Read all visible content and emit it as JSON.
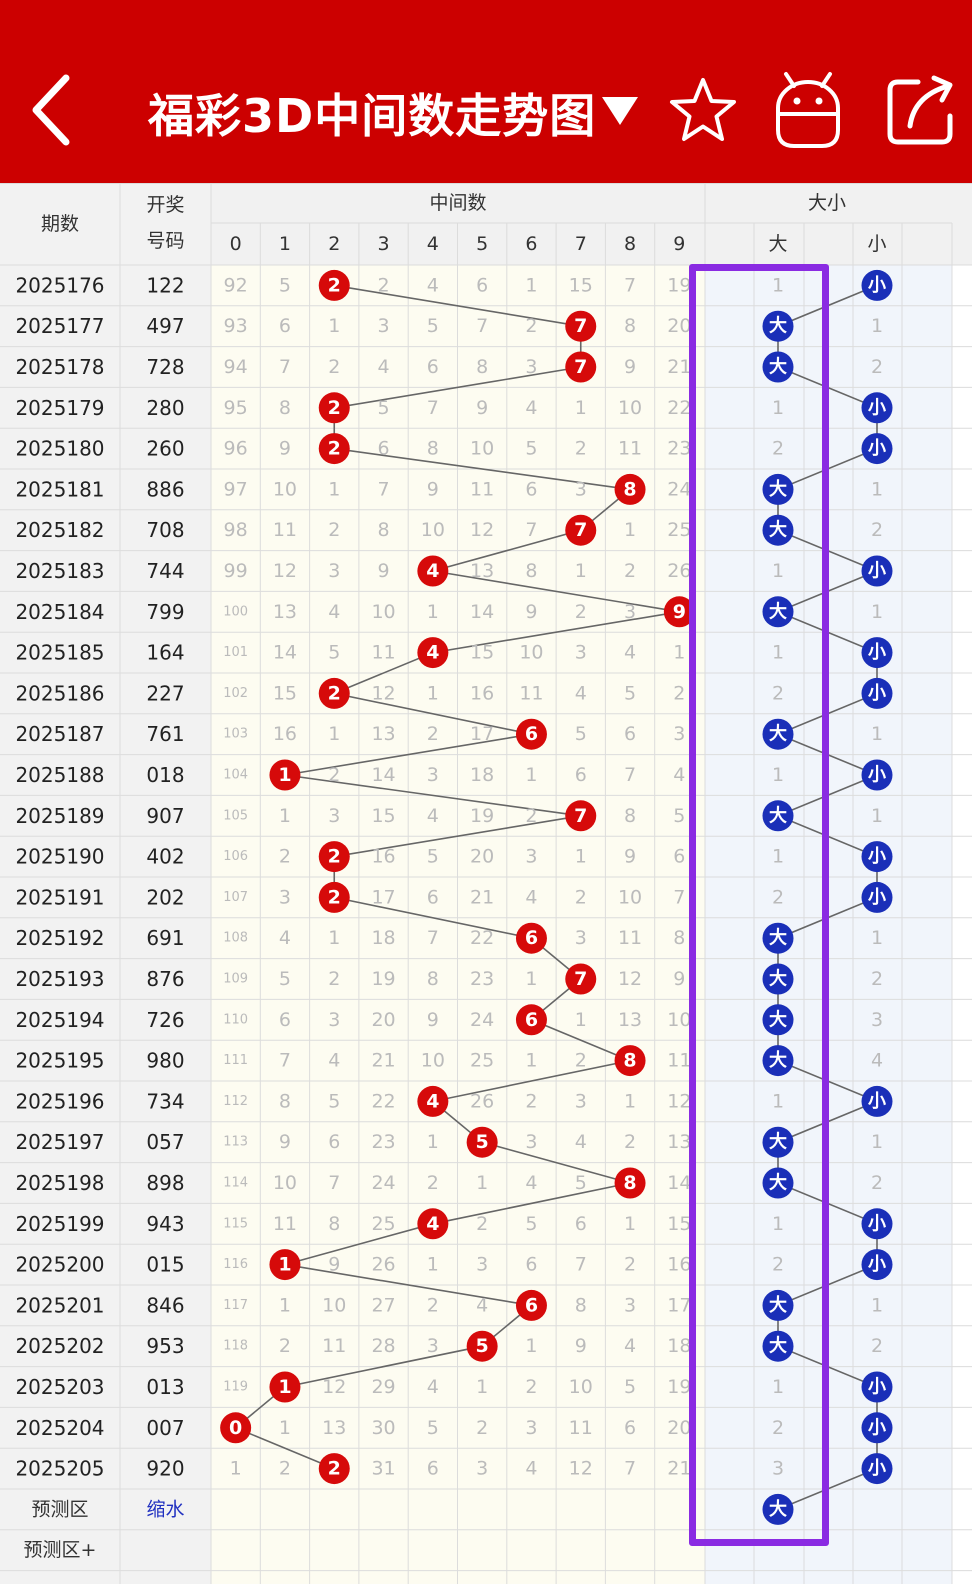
{
  "header": {
    "title": "福彩3D中间数走势图",
    "back_icon": "back-arrow-icon",
    "dropdown_icon": "triangle-down-icon",
    "actions": [
      "star-icon",
      "robot-icon",
      "share-icon"
    ]
  },
  "colors": {
    "header_bg": "#cc0000",
    "ball_red": "#d60a0a",
    "ball_blue": "#1a2fb8",
    "highlight": "#8a2be2",
    "grid_bg": "#fdfcf1"
  },
  "columns": {
    "period": "期数",
    "draw_line1": "开奖",
    "draw_line2": "号码",
    "middle_group": "中间数",
    "digits": [
      "0",
      "1",
      "2",
      "3",
      "4",
      "5",
      "6",
      "7",
      "8",
      "9"
    ],
    "size_group": "大小",
    "big": "大",
    "small": "小"
  },
  "rows": [
    {
      "period": "2025176",
      "draw": "122",
      "mid": [
        "92",
        "5",
        "2",
        "2",
        "4",
        "6",
        "1",
        "15",
        "7",
        "19"
      ],
      "midHit": 2,
      "size": [
        "1",
        "小"
      ],
      "sizeHit": 1
    },
    {
      "period": "2025177",
      "draw": "497",
      "mid": [
        "93",
        "6",
        "1",
        "3",
        "5",
        "7",
        "2",
        "7",
        "8",
        "20"
      ],
      "midHit": 7,
      "size": [
        "大",
        "1"
      ],
      "sizeHit": 0
    },
    {
      "period": "2025178",
      "draw": "728",
      "mid": [
        "94",
        "7",
        "2",
        "4",
        "6",
        "8",
        "3",
        "7",
        "9",
        "21"
      ],
      "midHit": 7,
      "size": [
        "大",
        "2"
      ],
      "sizeHit": 0
    },
    {
      "period": "2025179",
      "draw": "280",
      "mid": [
        "95",
        "8",
        "2",
        "5",
        "7",
        "9",
        "4",
        "1",
        "10",
        "22"
      ],
      "midHit": 2,
      "size": [
        "1",
        "小"
      ],
      "sizeHit": 1
    },
    {
      "period": "2025180",
      "draw": "260",
      "mid": [
        "96",
        "9",
        "2",
        "6",
        "8",
        "10",
        "5",
        "2",
        "11",
        "23"
      ],
      "midHit": 2,
      "size": [
        "2",
        "小"
      ],
      "sizeHit": 1
    },
    {
      "period": "2025181",
      "draw": "886",
      "mid": [
        "97",
        "10",
        "1",
        "7",
        "9",
        "11",
        "6",
        "3",
        "8",
        "24"
      ],
      "midHit": 8,
      "size": [
        "大",
        "1"
      ],
      "sizeHit": 0
    },
    {
      "period": "2025182",
      "draw": "708",
      "mid": [
        "98",
        "11",
        "2",
        "8",
        "10",
        "12",
        "7",
        "7",
        "1",
        "25"
      ],
      "midHit": 7,
      "size": [
        "大",
        "2"
      ],
      "sizeHit": 0
    },
    {
      "period": "2025183",
      "draw": "744",
      "mid": [
        "99",
        "12",
        "3",
        "9",
        "4",
        "13",
        "8",
        "1",
        "2",
        "26"
      ],
      "midHit": 4,
      "size": [
        "1",
        "小"
      ],
      "sizeHit": 1
    },
    {
      "period": "2025184",
      "draw": "799",
      "mid": [
        "100",
        "13",
        "4",
        "10",
        "1",
        "14",
        "9",
        "2",
        "3",
        "9"
      ],
      "midHit": 9,
      "size": [
        "大",
        "1"
      ],
      "sizeHit": 0
    },
    {
      "period": "2025185",
      "draw": "164",
      "mid": [
        "101",
        "14",
        "5",
        "11",
        "4",
        "15",
        "10",
        "3",
        "4",
        "1"
      ],
      "midHit": 4,
      "size": [
        "1",
        "小"
      ],
      "sizeHit": 1
    },
    {
      "period": "2025186",
      "draw": "227",
      "mid": [
        "102",
        "15",
        "2",
        "12",
        "1",
        "16",
        "11",
        "4",
        "5",
        "2"
      ],
      "midHit": 2,
      "size": [
        "2",
        "小"
      ],
      "sizeHit": 1
    },
    {
      "period": "2025187",
      "draw": "761",
      "mid": [
        "103",
        "16",
        "1",
        "13",
        "2",
        "17",
        "6",
        "5",
        "6",
        "3"
      ],
      "midHit": 6,
      "size": [
        "大",
        "1"
      ],
      "sizeHit": 0
    },
    {
      "period": "2025188",
      "draw": "018",
      "mid": [
        "104",
        "1",
        "2",
        "14",
        "3",
        "18",
        "1",
        "6",
        "7",
        "4"
      ],
      "midHit": 1,
      "size": [
        "1",
        "小"
      ],
      "sizeHit": 1
    },
    {
      "period": "2025189",
      "draw": "907",
      "mid": [
        "105",
        "1",
        "3",
        "15",
        "4",
        "19",
        "2",
        "7",
        "8",
        "5"
      ],
      "midHit": 7,
      "size": [
        "大",
        "1"
      ],
      "sizeHit": 0
    },
    {
      "period": "2025190",
      "draw": "402",
      "mid": [
        "106",
        "2",
        "2",
        "16",
        "5",
        "20",
        "3",
        "1",
        "9",
        "6"
      ],
      "midHit": 2,
      "size": [
        "1",
        "小"
      ],
      "sizeHit": 1
    },
    {
      "period": "2025191",
      "draw": "202",
      "mid": [
        "107",
        "3",
        "2",
        "17",
        "6",
        "21",
        "4",
        "2",
        "10",
        "7"
      ],
      "midHit": 2,
      "size": [
        "2",
        "小"
      ],
      "sizeHit": 1
    },
    {
      "period": "2025192",
      "draw": "691",
      "mid": [
        "108",
        "4",
        "1",
        "18",
        "7",
        "22",
        "6",
        "3",
        "11",
        "8"
      ],
      "midHit": 6,
      "size": [
        "大",
        "1"
      ],
      "sizeHit": 0
    },
    {
      "period": "2025193",
      "draw": "876",
      "mid": [
        "109",
        "5",
        "2",
        "19",
        "8",
        "23",
        "1",
        "7",
        "12",
        "9"
      ],
      "midHit": 7,
      "size": [
        "大",
        "2"
      ],
      "sizeHit": 0
    },
    {
      "period": "2025194",
      "draw": "726",
      "mid": [
        "110",
        "6",
        "3",
        "20",
        "9",
        "24",
        "6",
        "1",
        "13",
        "10"
      ],
      "midHit": 6,
      "size": [
        "大",
        "3"
      ],
      "sizeHit": 0
    },
    {
      "period": "2025195",
      "draw": "980",
      "mid": [
        "111",
        "7",
        "4",
        "21",
        "10",
        "25",
        "1",
        "2",
        "8",
        "11"
      ],
      "midHit": 8,
      "size": [
        "大",
        "4"
      ],
      "sizeHit": 0
    },
    {
      "period": "2025196",
      "draw": "734",
      "mid": [
        "112",
        "8",
        "5",
        "22",
        "4",
        "26",
        "2",
        "3",
        "1",
        "12"
      ],
      "midHit": 4,
      "size": [
        "1",
        "小"
      ],
      "sizeHit": 1
    },
    {
      "period": "2025197",
      "draw": "057",
      "mid": [
        "113",
        "9",
        "6",
        "23",
        "1",
        "5",
        "3",
        "4",
        "2",
        "13"
      ],
      "midHit": 5,
      "size": [
        "大",
        "1"
      ],
      "sizeHit": 0
    },
    {
      "period": "2025198",
      "draw": "898",
      "mid": [
        "114",
        "10",
        "7",
        "24",
        "2",
        "1",
        "4",
        "5",
        "8",
        "14"
      ],
      "midHit": 8,
      "size": [
        "大",
        "2"
      ],
      "sizeHit": 0
    },
    {
      "period": "2025199",
      "draw": "943",
      "mid": [
        "115",
        "11",
        "8",
        "25",
        "4",
        "2",
        "5",
        "6",
        "1",
        "15"
      ],
      "midHit": 4,
      "size": [
        "1",
        "小"
      ],
      "sizeHit": 1
    },
    {
      "period": "2025200",
      "draw": "015",
      "mid": [
        "116",
        "1",
        "9",
        "26",
        "1",
        "3",
        "6",
        "7",
        "2",
        "16"
      ],
      "midHit": 1,
      "size": [
        "2",
        "小"
      ],
      "sizeHit": 1
    },
    {
      "period": "2025201",
      "draw": "846",
      "mid": [
        "117",
        "1",
        "10",
        "27",
        "2",
        "4",
        "6",
        "8",
        "3",
        "17"
      ],
      "midHit": 6,
      "size": [
        "大",
        "1"
      ],
      "sizeHit": 0
    },
    {
      "period": "2025202",
      "draw": "953",
      "mid": [
        "118",
        "2",
        "11",
        "28",
        "3",
        "5",
        "1",
        "9",
        "4",
        "18"
      ],
      "midHit": 5,
      "size": [
        "大",
        "2"
      ],
      "sizeHit": 0
    },
    {
      "period": "2025203",
      "draw": "013",
      "mid": [
        "119",
        "1",
        "12",
        "29",
        "4",
        "1",
        "2",
        "10",
        "5",
        "19"
      ],
      "midHit": 1,
      "size": [
        "1",
        "小"
      ],
      "sizeHit": 1
    },
    {
      "period": "2025204",
      "draw": "007",
      "mid": [
        "0",
        "1",
        "13",
        "30",
        "5",
        "2",
        "3",
        "11",
        "6",
        "20"
      ],
      "midHit": 0,
      "size": [
        "2",
        "小"
      ],
      "sizeHit": 1
    },
    {
      "period": "2025205",
      "draw": "920",
      "mid": [
        "1",
        "2",
        "2",
        "31",
        "6",
        "3",
        "4",
        "12",
        "7",
        "21"
      ],
      "midHit": 2,
      "size": [
        "3",
        "小"
      ],
      "sizeHit": 1
    }
  ],
  "predict": {
    "label": "预测区",
    "action": "缩水",
    "size_hit": 0,
    "size_value": "大"
  },
  "predict_plus": {
    "label": "预测区+"
  }
}
